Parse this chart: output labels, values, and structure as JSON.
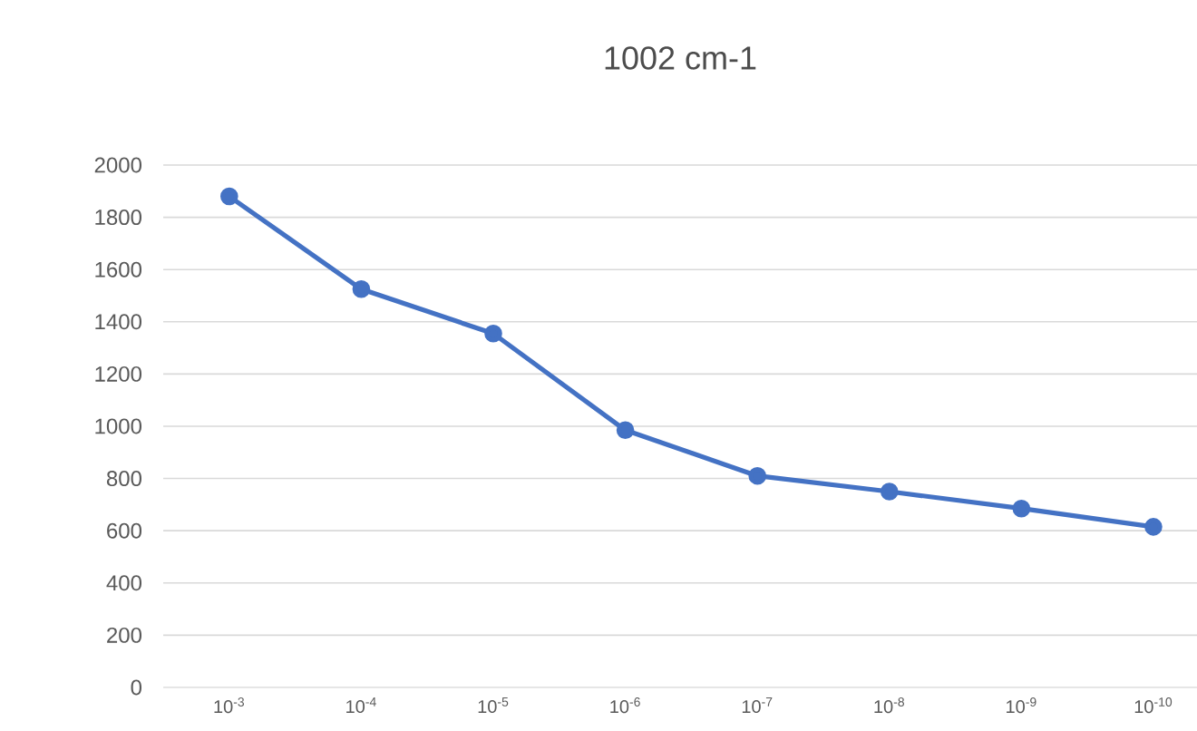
{
  "chart_data": {
    "type": "line",
    "title": "1002 cm-1",
    "categories": [
      "10$^{-3}$",
      "10$^{-4}$",
      "10$^{-5}$",
      "10$^{-6}$",
      "10$^{-7}$",
      "10$^{-8}$",
      "10$^{-9}$",
      "10$^{-10}$"
    ],
    "series": [
      {
        "color": "#4472c4",
        "values": [
          1880,
          1525,
          1355,
          985,
          810,
          750,
          685,
          615
        ]
      }
    ],
    "ylim": [
      0,
      2000
    ],
    "yticks": [
      0,
      200,
      400,
      600,
      800,
      1000,
      1200,
      1400,
      1600,
      1800,
      2000
    ],
    "grid": "y",
    "marker": "circle",
    "line_style": "solid"
  }
}
